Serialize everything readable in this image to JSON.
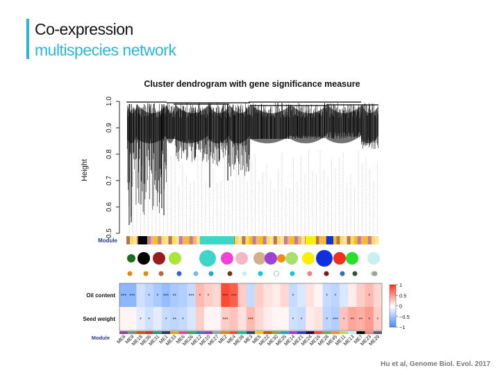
{
  "slide": {
    "title_line1": "Co-expression",
    "title_line2": "multispecies network",
    "citation": "Hu et al, Genome Biol. Evol. 2017",
    "accent_color": "#29b6d8"
  },
  "chart_data": [
    {
      "type": "dendrogram",
      "title": "Cluster dendrogram with gene significance measure",
      "ylabel": "Height",
      "ylim": [
        0.5,
        1.0
      ],
      "yticks": [
        "0.5",
        "0.6",
        "0.7",
        "0.8",
        "0.9",
        "1.0"
      ],
      "grid": false,
      "module_row_label": "Module",
      "module_strip_colors": [
        "#b5774e",
        "#e8a0b0",
        "#6aa84f",
        "#d6a2e8",
        "#2e6db4",
        "#f1c40f",
        "#cfe2f3",
        "#a64d79",
        "#1f8b4c",
        "#e06666",
        "#ffd966",
        "#000000",
        "#000000",
        "#8e7cc3",
        "#d9d9d9",
        "#c27ba0",
        "#3d85c6",
        "#ffffff",
        "#b6d7a8",
        "#e69138",
        "#ffe599",
        "#674ea7",
        "#0b5394",
        "#c9daf8",
        "#d5a6bd",
        "#f6b26b",
        "#93c47d",
        "#e6b8af",
        "#a2c4c9",
        "#5b0f00"
      ],
      "module_circles": [
        {
          "color": "#1b6e1b",
          "size": "small"
        },
        {
          "color": "#000000",
          "size": "medium"
        },
        {
          "color": "#9b1c1c",
          "size": "medium"
        },
        {
          "color": "#a8e63a",
          "size": "medium"
        },
        {
          "color": "#3ed6c8",
          "size": "large"
        },
        {
          "color": "#f540d8",
          "size": "medium"
        },
        {
          "color": "#f7b6c8",
          "size": "medium"
        },
        {
          "color": "#d2b08c",
          "size": "medium"
        },
        {
          "color": "#a040d8",
          "size": "medium"
        },
        {
          "color": "#f08c1c",
          "size": "small"
        },
        {
          "color": "#a8e06a",
          "size": "medium"
        },
        {
          "color": "#f8f000",
          "size": "medium"
        },
        {
          "color": "#1030e0",
          "size": "large"
        },
        {
          "color": "#f03018",
          "size": "medium"
        },
        {
          "color": "#28e028",
          "size": "medium"
        },
        {
          "color": "#c8f0f0",
          "size": "medium"
        }
      ],
      "module_dots": [
        "#e08a10",
        "#e08a10",
        "#b8663c",
        "#3060d0",
        "#7ab8e8",
        "#28a8c8",
        "#6a3a1c",
        "#c8f0f0",
        "#10c8d8",
        "#ffffff",
        "#10c8d8",
        "#f08080",
        "#801818",
        "#3070b8",
        "#2a5a2a",
        "#90d890",
        "#a0a0a0"
      ]
    },
    {
      "type": "heatmap",
      "rows": [
        "Oil content",
        "Seed weight"
      ],
      "columns": [
        "ME8",
        "ME9",
        "ME18",
        "ME36",
        "ME31",
        "ME1",
        "ME33",
        "ME6",
        "ME26",
        "ME12",
        "ME10",
        "ME27",
        "ME2",
        "ME4",
        "ME38",
        "ME3",
        "ME5",
        "ME22",
        "ME30",
        "ME25",
        "ME14",
        "ME21",
        "ME24",
        "ME16",
        "ME28",
        "ME45",
        "ME11",
        "ME13",
        "ME7",
        "ME23",
        "ME29"
      ],
      "values": [
        [
          -0.6,
          -0.6,
          -0.25,
          -0.35,
          -0.45,
          -0.55,
          -0.45,
          -0.4,
          -0.3,
          0.35,
          0.25,
          0.2,
          0.9,
          0.8,
          0.25,
          -0.3,
          0.25,
          0.15,
          0.1,
          0.2,
          -0.3,
          -0.2,
          0.15,
          0.05,
          -0.3,
          -0.35,
          -0.2,
          0.1,
          0.25,
          0.35,
          0.2
        ],
        [
          0.05,
          0.05,
          -0.15,
          -0.25,
          -0.15,
          -0.3,
          -0.35,
          -0.3,
          -0.2,
          0.25,
          0.05,
          0.05,
          0.25,
          0.3,
          0.15,
          0.35,
          0.2,
          0.1,
          0.05,
          0.05,
          -0.25,
          -0.3,
          0.1,
          0.15,
          -0.35,
          -0.4,
          0.3,
          0.45,
          0.4,
          0.5,
          0.25
        ]
      ],
      "stars": [
        [
          "***",
          "***",
          "",
          "*",
          "*",
          "***",
          "**",
          "",
          "***",
          "*",
          "*",
          "",
          "***",
          "***",
          "",
          "",
          "",
          "",
          "",
          "",
          "*",
          "",
          "",
          "",
          "*",
          "*",
          "",
          "",
          "",
          "*",
          ""
        ],
        [
          "",
          "",
          "*",
          "*",
          "",
          "*",
          "**",
          "*",
          "",
          "",
          "",
          "",
          "***",
          "",
          "",
          "***",
          "",
          "",
          "",
          "",
          "*",
          "*",
          "",
          "",
          "*",
          "***",
          "*",
          "**",
          "**",
          "*",
          "*"
        ]
      ],
      "module_row_label": "Module",
      "column_colors": [
        "#8e44ad",
        "#7f8c8d",
        "#d35400",
        "#c0392b",
        "#16a085",
        "#2c3e50",
        "#f39c12",
        "#e84393",
        "#27ae60",
        "#2980b9",
        "#8e44ad",
        "#95a5a6",
        "#e67e22",
        "#e74c3c",
        "#1abc9c",
        "#34495e",
        "#f1c40f",
        "#d35400",
        "#6ab04c",
        "#22a6b3",
        "#be2edd",
        "#4834d4",
        "#130f40",
        "#eb4d4b",
        "#6ab04c",
        "#f0932b",
        "#badc58",
        "#c7ecee",
        "#000000",
        "#ff7979",
        "#535c68"
      ],
      "scale_ticks": [
        "1",
        "0.5",
        "0",
        "−0.5",
        "−1"
      ],
      "scale_range": [
        -1,
        1
      ]
    }
  ]
}
